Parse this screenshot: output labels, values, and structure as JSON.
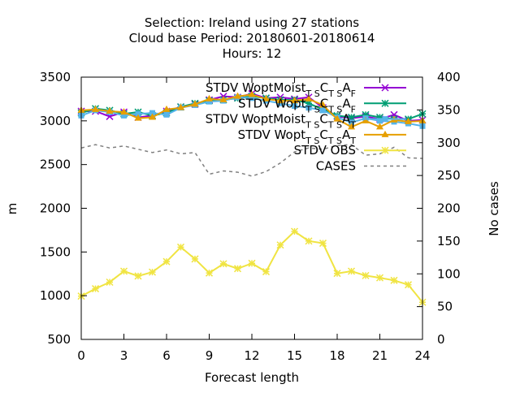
{
  "chart_data": {
    "type": "line",
    "title_lines": [
      "Selection: Ireland using    27 stations",
      "Cloud base   Period: 20180601-20180614",
      "Hours:  12"
    ],
    "xlabel": "Forecast length",
    "ylabel": "m",
    "y2label": "No cases",
    "xlim": [
      0,
      24
    ],
    "ylim": [
      500,
      3500
    ],
    "y2lim": [
      0,
      400
    ],
    "xticks": [
      0,
      3,
      6,
      9,
      12,
      15,
      18,
      21,
      24
    ],
    "yticks": [
      500,
      1000,
      1500,
      2000,
      2500,
      3000,
      3500
    ],
    "y2ticks": [
      0,
      50,
      100,
      150,
      200,
      250,
      300,
      350,
      400
    ],
    "grid": false,
    "legend_position": "top-right",
    "x": [
      0,
      1,
      2,
      3,
      4,
      5,
      6,
      7,
      8,
      9,
      10,
      11,
      12,
      13,
      14,
      15,
      16,
      17,
      18,
      19,
      20,
      21,
      22,
      23,
      24
    ],
    "series": [
      {
        "name": "STDV WoptMoist",
        "legend_parts": [
          "STDV WoptMoist",
          "T S",
          "C",
          "T S",
          "A",
          "F"
        ],
        "color": "#9400d3",
        "marker": "x",
        "axis": "y",
        "values": [
          3110,
          3110,
          3050,
          3100,
          3040,
          3060,
          3110,
          3160,
          3190,
          3240,
          3280,
          3270,
          3310,
          3260,
          3270,
          3250,
          3270,
          3150,
          3050,
          3030,
          3050,
          3020,
          3070,
          3000,
          3010
        ]
      },
      {
        "name": "STDV Wopt",
        "legend_parts": [
          "STDV Wopt",
          "T S",
          "C",
          "T S",
          "A",
          "F"
        ],
        "color": "#009e73",
        "marker": "star",
        "axis": "y",
        "values": [
          3090,
          3140,
          3120,
          3080,
          3100,
          3060,
          3090,
          3160,
          3200,
          3230,
          3240,
          3260,
          3280,
          3260,
          3240,
          3240,
          3200,
          3130,
          3060,
          3040,
          3070,
          3040,
          3020,
          3020,
          3080
        ]
      },
      {
        "name": "STDV WoptMoist",
        "legend_parts": [
          "STDV WoptMoist",
          "T S",
          "C",
          "T S",
          "A",
          "T"
        ],
        "color": "#56b4e9",
        "marker": "box",
        "axis": "y",
        "values": [
          3060,
          3120,
          3100,
          3060,
          3080,
          3090,
          3070,
          3150,
          3180,
          3220,
          3230,
          3270,
          3260,
          3230,
          3200,
          3170,
          3150,
          3120,
          3040,
          2980,
          3030,
          3000,
          2990,
          2970,
          2940
        ]
      },
      {
        "name": "STDV Wopt",
        "legend_parts": [
          "STDV Wopt",
          "T S",
          "C",
          "T S",
          "A",
          "T"
        ],
        "color": "#e69f00",
        "marker": "tri",
        "axis": "y",
        "values": [
          3120,
          3130,
          3110,
          3100,
          3030,
          3040,
          3130,
          3150,
          3190,
          3250,
          3240,
          3280,
          3300,
          3250,
          3230,
          3230,
          3250,
          3180,
          3020,
          2930,
          3000,
          2930,
          3010,
          2990,
          3000
        ]
      },
      {
        "name": "STDV OBS",
        "legend_parts": [
          "STDV OBS",
          "",
          "",
          "",
          "",
          ""
        ],
        "color": "#f0e442",
        "marker": "star",
        "axis": "y",
        "values": [
          995,
          1080,
          1155,
          1280,
          1225,
          1270,
          1390,
          1555,
          1420,
          1260,
          1365,
          1310,
          1370,
          1275,
          1580,
          1735,
          1625,
          1600,
          1255,
          1280,
          1230,
          1205,
          1175,
          1125,
          925
        ]
      },
      {
        "name": "CASES",
        "legend_parts": [
          "CASES",
          "",
          "",
          "",
          "",
          ""
        ],
        "color": "#808080",
        "marker": "none",
        "dashed": true,
        "axis": "y2",
        "values": [
          292,
          297,
          292,
          295,
          290,
          285,
          289,
          283,
          285,
          252,
          257,
          255,
          249,
          256,
          269,
          286,
          292,
          290,
          296,
          297,
          281,
          283,
          293,
          277,
          276
        ]
      }
    ]
  }
}
